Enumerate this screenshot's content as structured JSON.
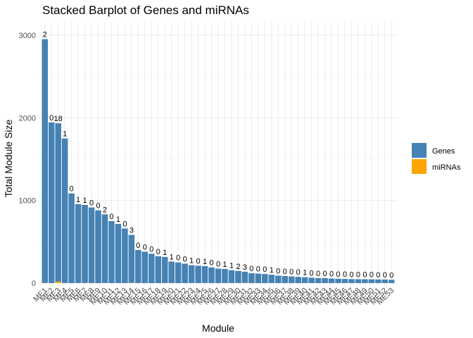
{
  "chart_data": {
    "type": "bar",
    "stacked": true,
    "title": "Stacked Barplot of Genes and miRNAs",
    "xlabel": "Module",
    "ylabel": "Total Module Size",
    "ylim": [
      0,
      3000
    ],
    "yticks": [
      0,
      1000,
      2000,
      3000
    ],
    "grid": true,
    "legend": {
      "position": "right",
      "entries": [
        "Genes",
        "miRNAs"
      ]
    },
    "colors": {
      "Genes": "#4682B4",
      "miRNAs": "#FFA500"
    },
    "categories": [
      "ME1",
      "ME2",
      "ME3",
      "ME4",
      "ME5",
      "ME6",
      "ME7",
      "ME8",
      "ME9",
      "ME10",
      "ME11",
      "ME12",
      "ME13",
      "ME14",
      "ME15",
      "ME16",
      "ME17",
      "ME18",
      "ME19",
      "ME20",
      "ME21",
      "ME22",
      "ME23",
      "ME24",
      "ME25",
      "ME26",
      "ME27",
      "ME28",
      "ME29",
      "ME30",
      "ME31",
      "ME32",
      "ME33",
      "ME34",
      "ME35",
      "ME36",
      "ME37",
      "ME38",
      "ME39",
      "ME40",
      "ME41",
      "ME42",
      "ME43",
      "ME44",
      "ME45",
      "ME46",
      "ME47",
      "ME48",
      "ME49",
      "ME50",
      "ME51",
      "ME52",
      "ME53"
    ],
    "series": [
      {
        "name": "Genes",
        "values": [
          2950,
          1945,
          1917,
          1750,
          1085,
          955,
          945,
          915,
          880,
          830,
          750,
          715,
          660,
          580,
          400,
          380,
          355,
          325,
          315,
          260,
          250,
          235,
          215,
          210,
          205,
          190,
          175,
          170,
          155,
          145,
          135,
          120,
          115,
          110,
          100,
          90,
          85,
          80,
          75,
          70,
          65,
          60,
          60,
          55,
          52,
          50,
          48,
          47,
          46,
          45,
          44,
          43,
          40
        ]
      },
      {
        "name": "miRNAs",
        "values": [
          2,
          0,
          18,
          1,
          0,
          1,
          1,
          0,
          0,
          2,
          0,
          1,
          0,
          3,
          0,
          0,
          0,
          0,
          1,
          1,
          0,
          0,
          1,
          0,
          1,
          0,
          0,
          1,
          1,
          2,
          3,
          0,
          0,
          0,
          1,
          0,
          0,
          0,
          0,
          1,
          0,
          0,
          0,
          0,
          0,
          0,
          0,
          0,
          0,
          0,
          0,
          0,
          0
        ]
      }
    ],
    "data_labels": [
      "2",
      "0",
      "18",
      "1",
      "0",
      "1",
      "1",
      "0",
      "0",
      "2",
      "0",
      "1",
      "0",
      "3",
      "0",
      "0",
      "0",
      "0",
      "1",
      "1",
      "0",
      "0",
      "1",
      "0",
      "1",
      "0",
      "0",
      "1",
      "1",
      "2",
      "3",
      "0",
      "0",
      "0",
      "1",
      "0",
      "0",
      "0",
      "0",
      "1",
      "0",
      "0",
      "0",
      "0",
      "0",
      "0",
      "0",
      "0",
      "0",
      "0",
      "0",
      "0",
      "0"
    ]
  }
}
